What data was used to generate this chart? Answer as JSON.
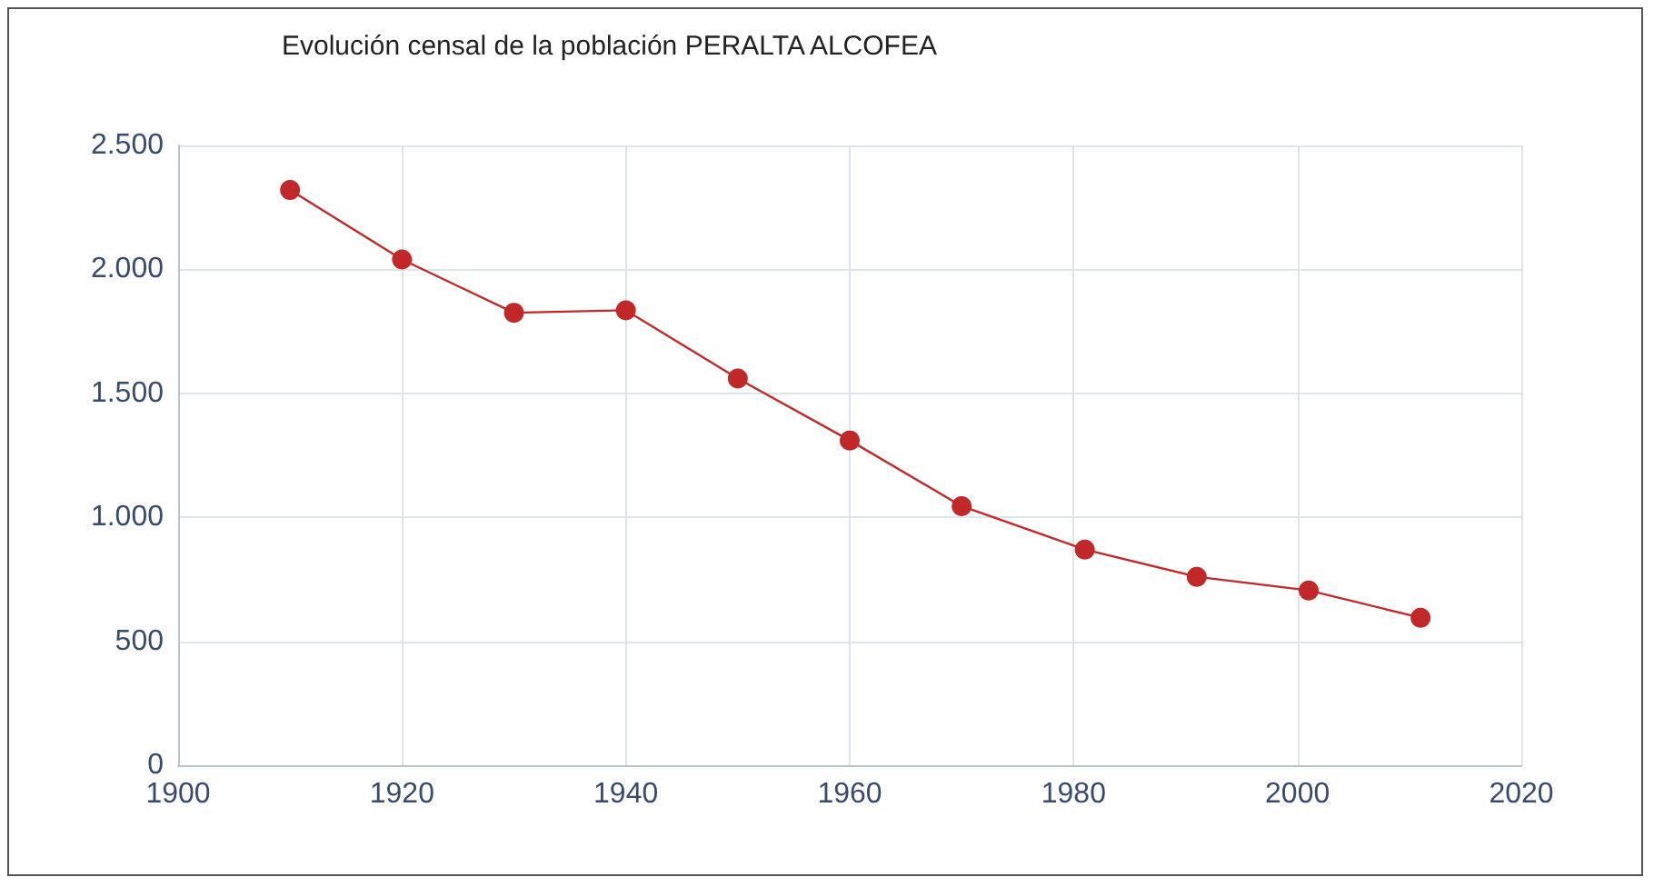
{
  "chart_data": {
    "type": "line",
    "title": "Evolución censal de la población PERALTA ALCOFEA",
    "x": [
      1910,
      1920,
      1930,
      1940,
      1950,
      1960,
      1970,
      1981,
      1991,
      2001,
      2011
    ],
    "series": [
      {
        "color": "#c0282a",
        "values": [
          2320,
          2040,
          1825,
          1835,
          1560,
          1310,
          1045,
          870,
          760,
          705,
          595
        ]
      }
    ],
    "xlim": [
      1900,
      2020
    ],
    "xticks": [
      1900,
      1920,
      1940,
      1960,
      1980,
      2000,
      2020
    ],
    "ylim": [
      0,
      2500
    ],
    "yticks": [
      {
        "value": 0,
        "label": "0"
      },
      {
        "value": 500,
        "label": "500"
      },
      {
        "value": 1000,
        "label": "1.000"
      },
      {
        "value": 1500,
        "label": "1.500"
      },
      {
        "value": 2000,
        "label": "2.000"
      },
      {
        "value": 2500,
        "label": "2.500"
      }
    ],
    "grid": true,
    "marker": "circle",
    "line_style": "solid"
  }
}
